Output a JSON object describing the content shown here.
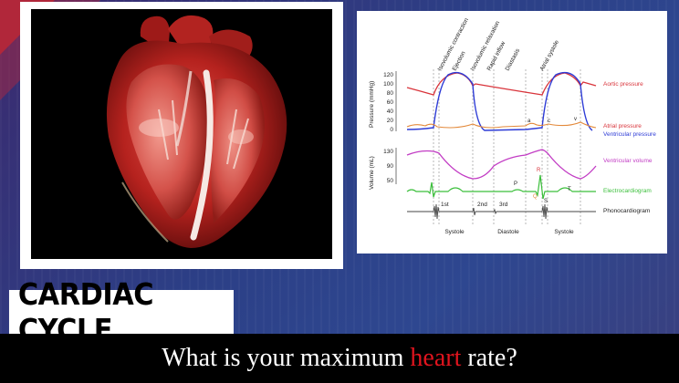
{
  "title": "CARDIAC CYCLE",
  "question": {
    "before": "What is your maximum ",
    "highlight": "heart",
    "after": " rate?"
  },
  "colors": {
    "highlight": "#e0141e",
    "aortic": "#d9343b",
    "atrial": "#e3893a",
    "ventricular": "#2d3bd6",
    "volume": "#c23cc4",
    "ecg": "#3bbf3b"
  },
  "diagram": {
    "phases_top": [
      "Isovolumic contraction",
      "Ejection",
      "Isovolumic relaxation",
      "Rapid inflow",
      "Diastasis",
      "Atrial systole"
    ],
    "pressure_axis": {
      "label": "Pressure (mmHg)",
      "ticks": [
        "120",
        "100",
        "80",
        "60",
        "40",
        "20",
        "0"
      ]
    },
    "volume_axis": {
      "label": "Volume (mL)",
      "ticks": [
        "130",
        "90",
        "50"
      ]
    },
    "curve_labels": [
      "Aortic pressure",
      "Atrial pressure",
      "Ventricular pressure",
      "Ventricular volume",
      "Electrocardiogram",
      "Phonocardiogram"
    ],
    "wave_letters": {
      "a": "a",
      "c": "c",
      "v": "v",
      "P": "P",
      "R": "R",
      "Q": "Q",
      "S": "S",
      "T": "T"
    },
    "heart_sounds": [
      "1st",
      "2nd",
      "3rd"
    ],
    "phases_bottom": [
      "Systole",
      "Diastole",
      "Systole"
    ]
  }
}
